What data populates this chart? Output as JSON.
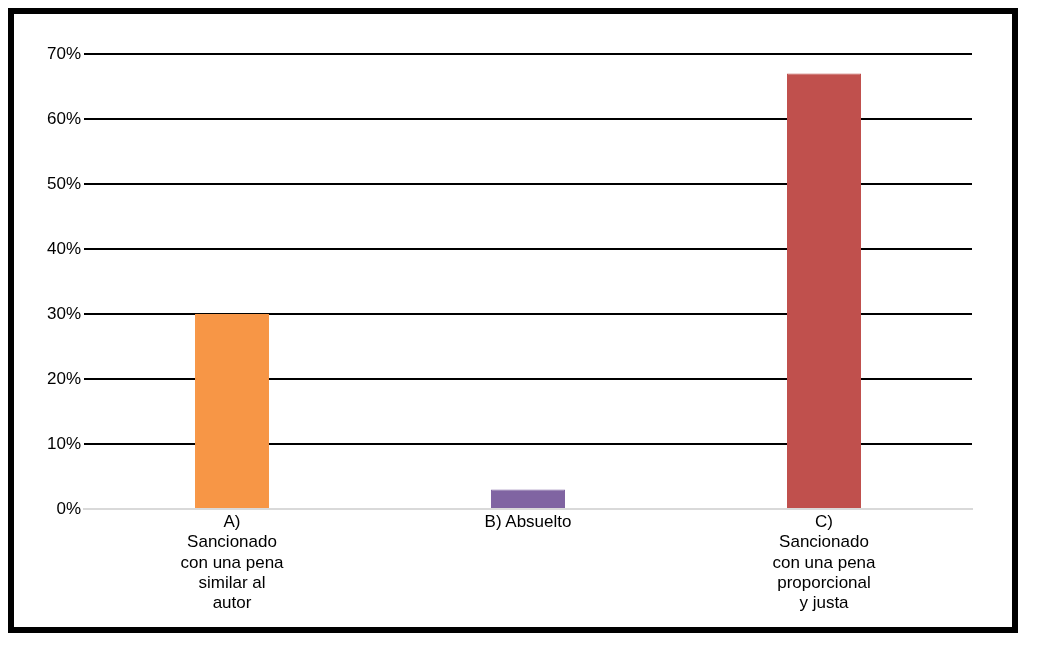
{
  "chart_data": {
    "type": "bar",
    "categories": [
      "A) Sancionado con una pena similar al autor",
      "B) Absuelto",
      "C) Sancionado con una pena proporcional y justa"
    ],
    "values": [
      30,
      3,
      67
    ],
    "colors": [
      "#f79646",
      "#8064a2",
      "#c0504d"
    ],
    "ylim": [
      0,
      70
    ],
    "yticks": [
      {
        "value": 0,
        "label": "0%"
      },
      {
        "value": 10,
        "label": "10%"
      },
      {
        "value": 20,
        "label": "20%"
      },
      {
        "value": 30,
        "label": "30%"
      },
      {
        "value": 40,
        "label": "40%"
      },
      {
        "value": 50,
        "label": "50%"
      },
      {
        "value": 60,
        "label": "60%"
      },
      {
        "value": 70,
        "label": "70%"
      }
    ],
    "grid": "y",
    "legend": false
  }
}
